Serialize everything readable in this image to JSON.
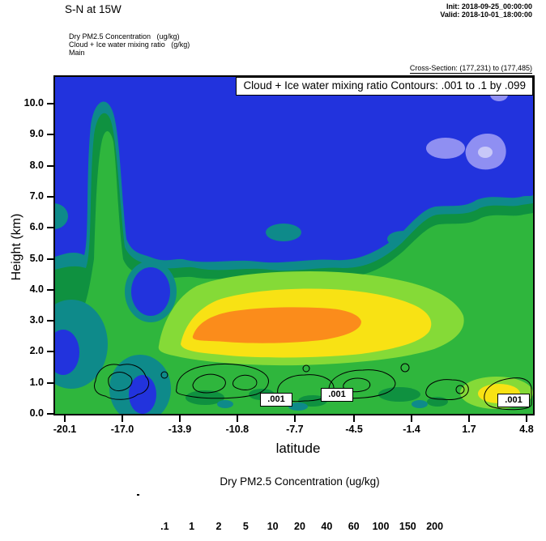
{
  "header": {
    "title": "S-N at 15W",
    "init": "Init: 2018-09-25_00:00:00",
    "valid": "Valid: 2018-10-01_18:00:00",
    "fields": [
      "Dry PM2.5 Concentration   (ug/kg)",
      "Cloud + Ice water mixing ratio   (g/kg)",
      "Main"
    ],
    "cross_section": "Cross-Section: (177,231) to (177,485)"
  },
  "plot": {
    "inner_title": "Cloud + Ice water mixing ratio Contours: .001 to .1 by .099",
    "ylabel": "Height (km)",
    "xlabel": "latitude",
    "contour_labels": [
      ".001",
      ".001",
      ".001"
    ]
  },
  "colorbar": {
    "title": "Dry PM2.5 Concentration  (ug/kg)",
    "labels": [
      ".1",
      "1",
      "2",
      "5",
      "10",
      "20",
      "40",
      "60",
      "100",
      "150",
      "200"
    ],
    "colors": [
      "#ffffff",
      "#c8c8f8",
      "#8f8ff2",
      "#2233dd",
      "#0e8a8a",
      "#0f9140",
      "#2fb63d",
      "#85da37",
      "#c9e42c",
      "#f8e214",
      "#fb8c1b",
      "#ef2317"
    ]
  },
  "chart_data": {
    "type": "heatmap",
    "title": "S-N at 15W",
    "fill_field": "Dry PM2.5 Concentration",
    "fill_units": "ug/kg",
    "fill_levels": [
      0.1,
      1,
      2,
      5,
      10,
      20,
      40,
      60,
      100,
      150,
      200
    ],
    "fill_colors": [
      "#ffffff",
      "#c8c8f8",
      "#8f8ff2",
      "#2233dd",
      "#0e8a8a",
      "#0f9140",
      "#2fb63d",
      "#85da37",
      "#c9e42c",
      "#f8e214",
      "#fb8c1b",
      "#ef2317"
    ],
    "overlay_contours": {
      "field": "Cloud + Ice water mixing ratio",
      "units": "g/kg",
      "start": 0.001,
      "end": 0.1,
      "interval": 0.099,
      "labeled_level": 0.001
    },
    "xlabel": "latitude",
    "ylabel": "Height (km)",
    "x_ticks": [
      -20.1,
      -17.0,
      -13.9,
      -10.8,
      -7.7,
      -4.5,
      -1.4,
      1.7,
      4.8
    ],
    "x_tick_labels": [
      "-20.1",
      "-17.0",
      "-13.9",
      "-10.8",
      "-7.7",
      "-4.5",
      "-1.4",
      "1.7",
      "4.8"
    ],
    "y_ticks": [
      0,
      1,
      2,
      3,
      4,
      5,
      6,
      7,
      8,
      9,
      10
    ],
    "y_tick_labels": [
      "0.0",
      "1.0",
      "2.0",
      "3.0",
      "4.0",
      "5.0",
      "6.0",
      "7.0",
      "8.0",
      "9.0",
      "10.0"
    ],
    "xlim": [
      -20.6,
      5.2
    ],
    "ylim": [
      0,
      10.9
    ],
    "init_time": "2018-09-25_00:00:00",
    "valid_time": "2018-10-01_18:00:00",
    "cross_section_points": "(177,231) to (177,485)",
    "grid_estimate": {
      "note": "approximate PM2.5 values (ug/kg) read from fill colors at lat x height grid",
      "lat": [
        -20.1,
        -17.0,
        -13.9,
        -10.8,
        -7.7,
        -4.5,
        -1.4,
        1.7,
        4.8
      ],
      "height_km": [
        0,
        1,
        2,
        3,
        4,
        5,
        6,
        7,
        8,
        9,
        10
      ],
      "values_by_height": [
        [
          30,
          25,
          8,
          60,
          60,
          40,
          30,
          25,
          60
        ],
        [
          15,
          20,
          8,
          40,
          50,
          40,
          30,
          25,
          40
        ],
        [
          8,
          25,
          30,
          120,
          120,
          70,
          45,
          30,
          30
        ],
        [
          5,
          25,
          40,
          120,
          110,
          60,
          40,
          30,
          30
        ],
        [
          4,
          20,
          25,
          50,
          50,
          40,
          30,
          25,
          25
        ],
        [
          3,
          15,
          10,
          15,
          20,
          25,
          25,
          20,
          20
        ],
        [
          3,
          12,
          5,
          5,
          8,
          15,
          18,
          15,
          15
        ],
        [
          3,
          12,
          4,
          4,
          4,
          5,
          8,
          8,
          8
        ],
        [
          3,
          10,
          4,
          3,
          3,
          4,
          5,
          5,
          4
        ],
        [
          3,
          10,
          3,
          3,
          3,
          3,
          4,
          3,
          2
        ],
        [
          3,
          8,
          3,
          3,
          3,
          3,
          3,
          3,
          2
        ]
      ]
    }
  }
}
